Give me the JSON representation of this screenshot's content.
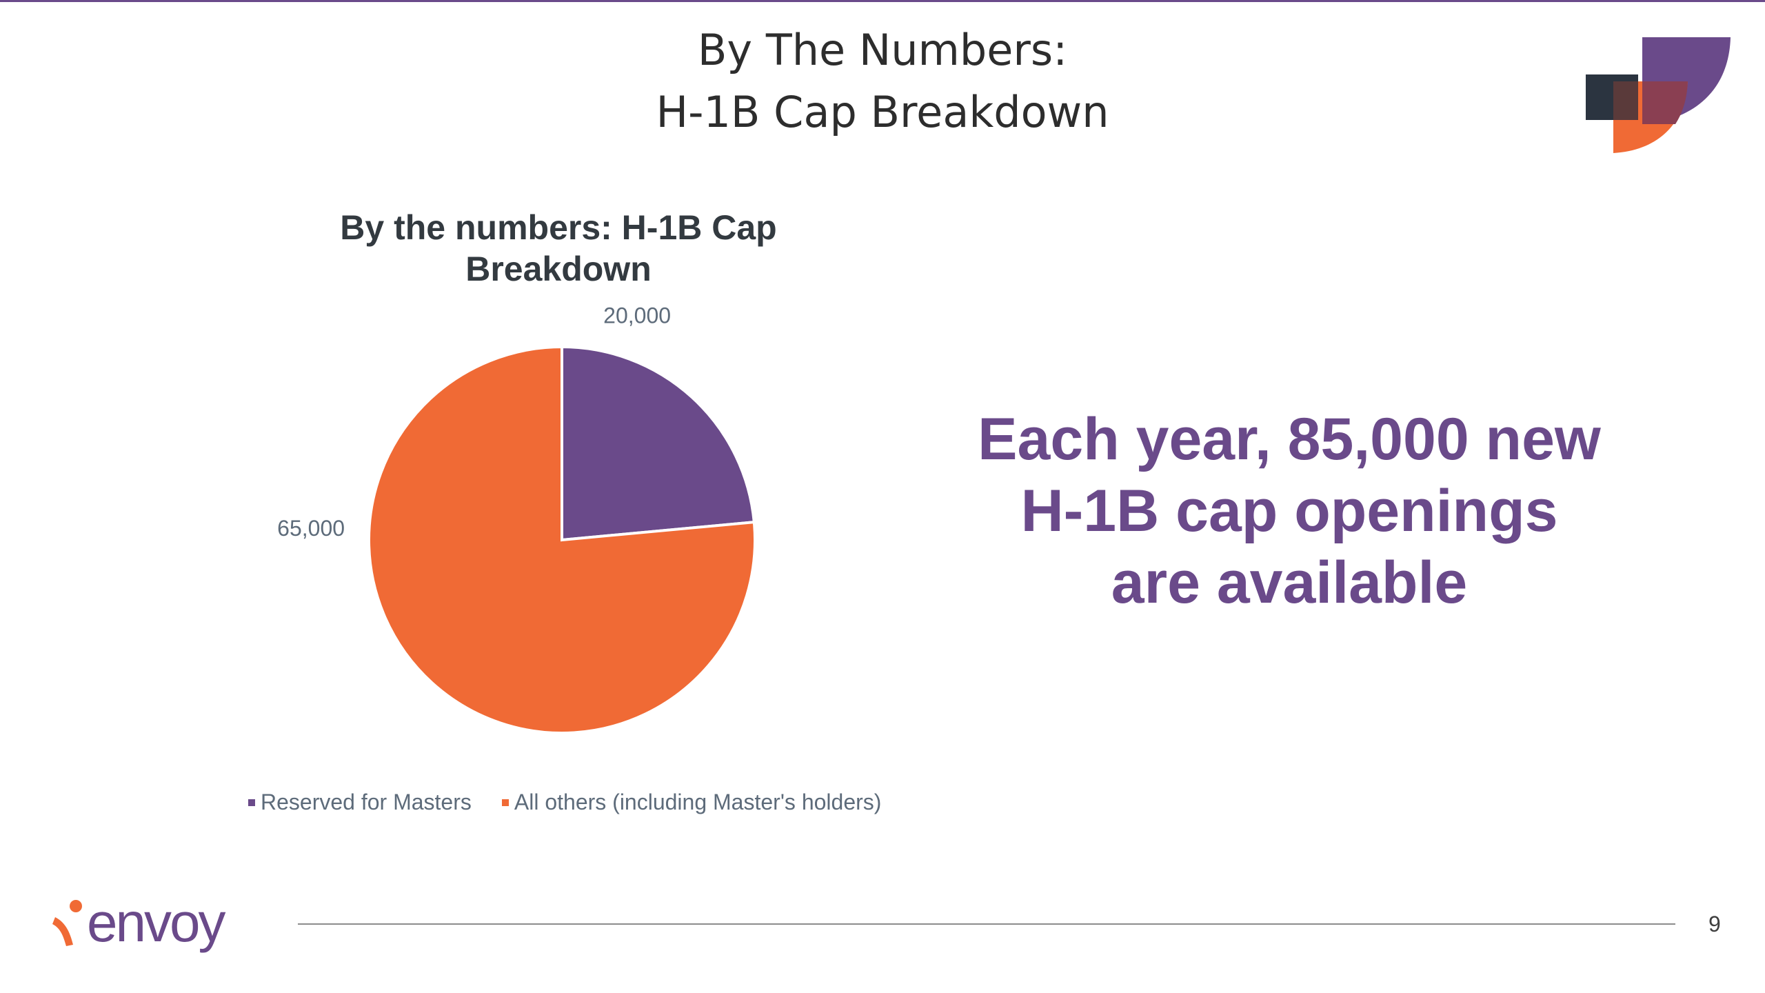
{
  "slide": {
    "title_line1": "By The Numbers:",
    "title_line2": "H-1B Cap Breakdown",
    "callout_line1": "Each year, 85,000 new",
    "callout_line2": "H-1B cap openings",
    "callout_line3": "are available",
    "brand": "envoy",
    "page_number": "9"
  },
  "colors": {
    "purple": "#6a4a8a",
    "orange": "#f06a35",
    "dark": "#2b3440"
  },
  "icons": {
    "corner": "brand-mark-icon",
    "footer": "envoy-logo-icon"
  },
  "chart_data": {
    "type": "pie",
    "title": "By the numbers: H-1B Cap Breakdown",
    "title_line1": "By the numbers: H-1B Cap",
    "title_line2": "Breakdown",
    "categories": [
      "Reserved for Masters",
      "All others (including Master's holders)"
    ],
    "values": [
      20000,
      65000
    ],
    "value_labels": [
      "20,000",
      "65,000"
    ],
    "colors": [
      "#6a4a8a",
      "#f06a35"
    ],
    "legend_position": "bottom"
  }
}
